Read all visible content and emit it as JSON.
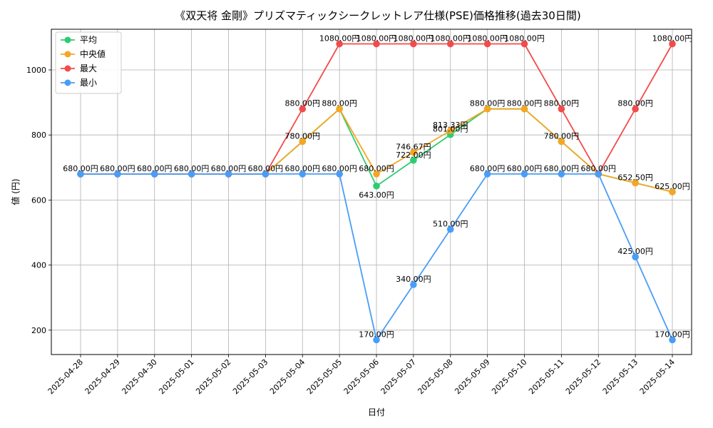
{
  "chart_data": {
    "type": "line",
    "title": "《双天将 金剛》プリズマティックシークレットレア仕様(PSE)価格推移(過去30日間)",
    "xlabel": "日付",
    "ylabel": "値 (円)",
    "ylim": [
      125,
      1125
    ],
    "yticks": [
      200,
      400,
      600,
      800,
      1000
    ],
    "grid": true,
    "legend_position": "top-left",
    "value_suffix": "円",
    "categories": [
      "2025-04-28",
      "2025-04-29",
      "2025-04-30",
      "2025-05-01",
      "2025-05-02",
      "2025-05-03",
      "2025-05-04",
      "2025-05-05",
      "2025-05-06",
      "2025-05-07",
      "2025-05-08",
      "2025-05-09",
      "2025-05-10",
      "2025-05-11",
      "2025-05-12",
      "2025-05-13",
      "2025-05-14"
    ],
    "series": [
      {
        "name": "平均",
        "color": "#2ecc71",
        "values": [
          680,
          680,
          680,
          680,
          680,
          680,
          780,
          880,
          643,
          722,
          801,
          880,
          880,
          780,
          680,
          652.5,
          625
        ]
      },
      {
        "name": "中央値",
        "color": "#f5a623",
        "values": [
          680,
          680,
          680,
          680,
          680,
          680,
          780,
          880,
          680,
          746.67,
          813.33,
          880,
          880,
          780,
          680,
          652.5,
          625
        ]
      },
      {
        "name": "最大",
        "color": "#f24b4b",
        "values": [
          680,
          680,
          680,
          680,
          680,
          680,
          880,
          1080,
          1080,
          1080,
          1080,
          1080,
          1080,
          880,
          680,
          880,
          1080
        ]
      },
      {
        "name": "最小",
        "color": "#4a9df7",
        "values": [
          680,
          680,
          680,
          680,
          680,
          680,
          680,
          680,
          170,
          340,
          510,
          680,
          680,
          680,
          680,
          425,
          170
        ]
      }
    ],
    "data_labels": [
      {
        "series": 0,
        "index": 0,
        "text": "680.00円"
      },
      {
        "series": 0,
        "index": 1,
        "text": "680.00円"
      },
      {
        "series": 0,
        "index": 2,
        "text": "680.00円"
      },
      {
        "series": 0,
        "index": 3,
        "text": "680.00円"
      },
      {
        "series": 0,
        "index": 4,
        "text": "680.00円"
      },
      {
        "series": 0,
        "index": 5,
        "text": "680.00円"
      },
      {
        "series": 0,
        "index": 6,
        "text": "780.00円"
      },
      {
        "series": 0,
        "index": 7,
        "text": "880.00円"
      },
      {
        "series": 0,
        "index": 8,
        "text": "643.00円",
        "pos": "below"
      },
      {
        "series": 0,
        "index": 9,
        "text": "722.00円"
      },
      {
        "series": 0,
        "index": 10,
        "text": "801.00円"
      },
      {
        "series": 0,
        "index": 11,
        "text": "880.00円"
      },
      {
        "series": 0,
        "index": 12,
        "text": "880.00円"
      },
      {
        "series": 0,
        "index": 13,
        "text": "780.00円"
      },
      {
        "series": 0,
        "index": 14,
        "text": "680.00円"
      },
      {
        "series": 0,
        "index": 15,
        "text": "652.50円"
      },
      {
        "series": 0,
        "index": 16,
        "text": "625.00円"
      },
      {
        "series": 1,
        "index": 8,
        "text": "680.00円"
      },
      {
        "series": 1,
        "index": 9,
        "text": "746.67円"
      },
      {
        "series": 1,
        "index": 10,
        "text": "813.33円"
      },
      {
        "series": 2,
        "index": 6,
        "text": "880.00円"
      },
      {
        "series": 2,
        "index": 7,
        "text": "1080.00円"
      },
      {
        "series": 2,
        "index": 8,
        "text": "1080.00円"
      },
      {
        "series": 2,
        "index": 9,
        "text": "1080.00円"
      },
      {
        "series": 2,
        "index": 10,
        "text": "1080.00円"
      },
      {
        "series": 2,
        "index": 11,
        "text": "1080.00円"
      },
      {
        "series": 2,
        "index": 12,
        "text": "1080.00円"
      },
      {
        "series": 2,
        "index": 13,
        "text": "880.00円"
      },
      {
        "series": 2,
        "index": 15,
        "text": "880.00円"
      },
      {
        "series": 2,
        "index": 16,
        "text": "1080.00円"
      },
      {
        "series": 3,
        "index": 6,
        "text": "680.00円"
      },
      {
        "series": 3,
        "index": 7,
        "text": "680.00円"
      },
      {
        "series": 3,
        "index": 8,
        "text": "170.00円"
      },
      {
        "series": 3,
        "index": 9,
        "text": "340.00円"
      },
      {
        "series": 3,
        "index": 10,
        "text": "510.00円"
      },
      {
        "series": 3,
        "index": 11,
        "text": "680.00円"
      },
      {
        "series": 3,
        "index": 12,
        "text": "680.00円"
      },
      {
        "series": 3,
        "index": 13,
        "text": "680.00円"
      },
      {
        "series": 3,
        "index": 15,
        "text": "425.00円"
      },
      {
        "series": 3,
        "index": 16,
        "text": "170.00円"
      }
    ]
  }
}
